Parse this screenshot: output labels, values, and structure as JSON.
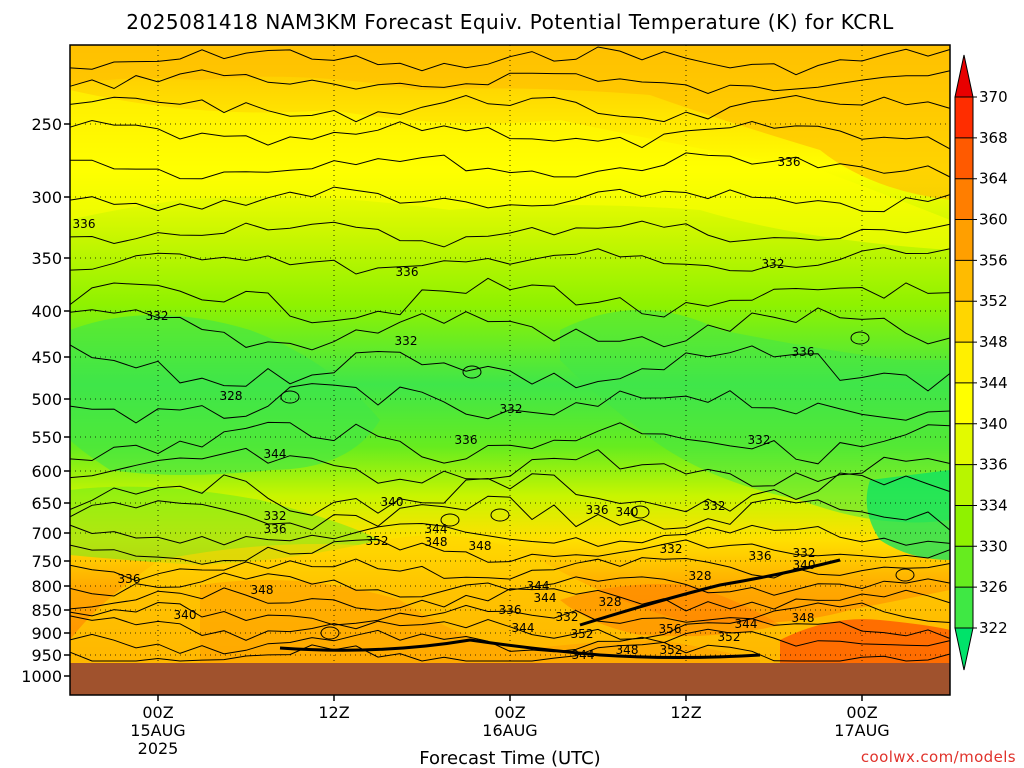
{
  "chart_data": {
    "type": "heatmap",
    "title": "2025081418 NAM3KM Forecast Equiv. Potential Temperature (K) for KCRL",
    "xlabel": "Forecast Time (UTC)",
    "ylabel": "",
    "y_scale": "log-pressure",
    "y_ticks": [
      {
        "value": 250,
        "label": "250"
      },
      {
        "value": 300,
        "label": "300"
      },
      {
        "value": 350,
        "label": "350"
      },
      {
        "value": 400,
        "label": "400"
      },
      {
        "value": 450,
        "label": "450"
      },
      {
        "value": 500,
        "label": "500"
      },
      {
        "value": 550,
        "label": "550"
      },
      {
        "value": 600,
        "label": "600"
      },
      {
        "value": 650,
        "label": "650"
      },
      {
        "value": 700,
        "label": "700"
      },
      {
        "value": 750,
        "label": "750"
      },
      {
        "value": 800,
        "label": "800"
      },
      {
        "value": 850,
        "label": "850"
      },
      {
        "value": 900,
        "label": "900"
      },
      {
        "value": 950,
        "label": "950"
      },
      {
        "value": 1000,
        "label": "1000"
      }
    ],
    "x_ticks": [
      {
        "lines": [
          "00Z",
          "15AUG",
          "2025"
        ]
      },
      {
        "lines": [
          "12Z"
        ]
      },
      {
        "lines": [
          "00Z",
          "16AUG"
        ]
      },
      {
        "lines": [
          "12Z"
        ]
      },
      {
        "lines": [
          "00Z",
          "17AUG"
        ]
      }
    ],
    "colorbar": {
      "levels": [
        322,
        326,
        330,
        334,
        336,
        340,
        344,
        348,
        352,
        356,
        360,
        364,
        368,
        370
      ],
      "colors": [
        "#00e36a",
        "#3fe844",
        "#66ec1f",
        "#8ff200",
        "#b8f500",
        "#e2fa00",
        "#ffff00",
        "#fff000",
        "#ffd600",
        "#ffbb00",
        "#ff9f00",
        "#ff7e00",
        "#ff5a00",
        "#ff2d00",
        "#e80000"
      ]
    },
    "contour_labels": [
      {
        "text": "336"
      },
      {
        "text": "332"
      },
      {
        "text": "328"
      },
      {
        "text": "336"
      },
      {
        "text": "332"
      },
      {
        "text": "336"
      },
      {
        "text": "344"
      },
      {
        "text": "336"
      },
      {
        "text": "332"
      },
      {
        "text": "336"
      },
      {
        "text": "332"
      },
      {
        "text": "332"
      },
      {
        "text": "336"
      },
      {
        "text": "340"
      },
      {
        "text": "332"
      },
      {
        "text": "336"
      },
      {
        "text": "352"
      },
      {
        "text": "344"
      },
      {
        "text": "348"
      },
      {
        "text": "348"
      },
      {
        "text": "336"
      },
      {
        "text": "340"
      },
      {
        "text": "332"
      },
      {
        "text": "332"
      },
      {
        "text": "336"
      },
      {
        "text": "332"
      },
      {
        "text": "340"
      },
      {
        "text": "328"
      },
      {
        "text": "344"
      },
      {
        "text": "336"
      },
      {
        "text": "348"
      },
      {
        "text": "340"
      },
      {
        "text": "332"
      },
      {
        "text": "328"
      },
      {
        "text": "344"
      },
      {
        "text": "352"
      },
      {
        "text": "356"
      },
      {
        "text": "352"
      },
      {
        "text": "344"
      },
      {
        "text": "348"
      },
      {
        "text": "344"
      },
      {
        "text": "348"
      },
      {
        "text": "352"
      },
      {
        "text": "344"
      }
    ]
  },
  "footer": {
    "credit": "coolwx.com/models"
  },
  "colors": {
    "ground": "#a0522d",
    "frame": "#000000",
    "credit": "#e0322b"
  }
}
